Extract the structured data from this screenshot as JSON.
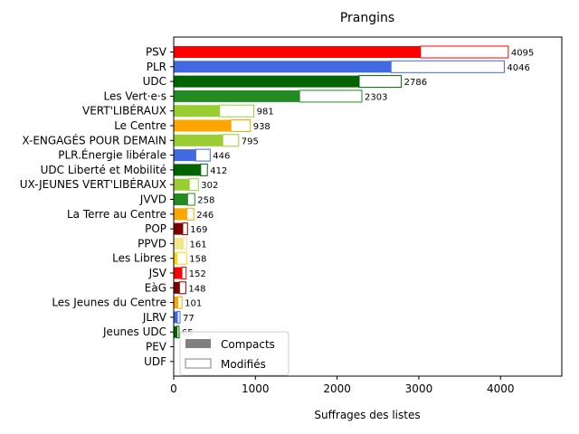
{
  "chart_data": {
    "type": "bar",
    "orientation": "horizontal",
    "title": "Prangins",
    "xlabel": "Suffrages des listes",
    "ylabel": "",
    "xlim": [
      0,
      4750
    ],
    "xticks": [
      0,
      1000,
      2000,
      3000,
      4000
    ],
    "grid": false,
    "legend": {
      "position": "lower-left",
      "entries": [
        {
          "label": "Compacts",
          "style": "filled",
          "color": "#808080"
        },
        {
          "label": "Modifiés",
          "style": "outline",
          "color": "#808080"
        }
      ]
    },
    "categories": [
      "PSV",
      "PLR",
      "UDC",
      "Les Vert·e·s",
      "VERT'LIBÉRAUX",
      "Le Centre",
      "X-ENGAGÉS POUR DEMAIN",
      "PLR.Énergie libérale",
      "UDC Liberté et Mobilité",
      "UX-JEUNES VERT'LIBÉRAUX",
      "JVVD",
      "La Terre au Centre",
      "POP",
      "PPVD",
      "Les Libres",
      "JSV",
      "EàG",
      "Les Jeunes du Centre",
      "JLRV",
      "Jeunes UDC",
      "PEV",
      "UDF"
    ],
    "colors": [
      "#ff0000",
      "#4169e1",
      "#006400",
      "#228b22",
      "#9acd32",
      "#ffa500",
      "#9acd32",
      "#4169e1",
      "#006400",
      "#9acd32",
      "#228b22",
      "#ffa500",
      "#800000",
      "#f0e68c",
      "#ffd700",
      "#ff0000",
      "#800000",
      "#ffa500",
      "#4169e1",
      "#006400",
      "#ffd700",
      "#808080"
    ],
    "series": [
      {
        "name": "Compacts",
        "values": [
          3020,
          2660,
          2270,
          1540,
          560,
          700,
          600,
          270,
          330,
          190,
          170,
          160,
          110,
          120,
          40,
          100,
          70,
          50,
          45,
          40,
          0,
          0
        ]
      },
      {
        "name": "Modifiés",
        "values": [
          1075,
          1386,
          516,
          763,
          421,
          238,
          195,
          176,
          82,
          112,
          88,
          86,
          59,
          41,
          118,
          52,
          78,
          51,
          32,
          25,
          0,
          0
        ]
      }
    ],
    "totals": [
      4095,
      4046,
      2786,
      2303,
      981,
      938,
      795,
      446,
      412,
      302,
      258,
      246,
      169,
      161,
      158,
      152,
      148,
      101,
      77,
      65,
      null,
      null
    ],
    "total_labels": [
      "4095",
      "4046",
      "2786",
      "2303",
      "981",
      "938",
      "795",
      "446",
      "412",
      "302",
      "258",
      "246",
      "169",
      "161",
      "158",
      "152",
      "148",
      "101",
      "77",
      "65",
      "",
      ""
    ]
  }
}
